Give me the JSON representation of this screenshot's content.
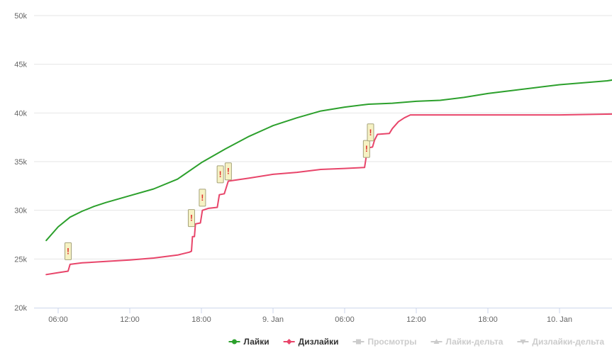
{
  "chart_data": {
    "type": "line",
    "x_axis_type": "datetime",
    "x_range": [
      "2024-01-08T04:30",
      "2024-01-10T12:30"
    ],
    "y_range": [
      20000,
      50000
    ],
    "y_ticks": [
      {
        "value": 20000,
        "label": "20k"
      },
      {
        "value": 25000,
        "label": "25k"
      },
      {
        "value": 30000,
        "label": "30k"
      },
      {
        "value": 35000,
        "label": "35k"
      },
      {
        "value": 40000,
        "label": "40k"
      },
      {
        "value": 45000,
        "label": "45k"
      },
      {
        "value": 50000,
        "label": "50k"
      }
    ],
    "x_ticks": [
      {
        "value": "2024-01-08T06:00",
        "label": "06:00"
      },
      {
        "value": "2024-01-08T12:00",
        "label": "12:00"
      },
      {
        "value": "2024-01-08T18:00",
        "label": "18:00"
      },
      {
        "value": "2024-01-09T00:00",
        "label": "9. Jan"
      },
      {
        "value": "2024-01-09T06:00",
        "label": "06:00"
      },
      {
        "value": "2024-01-09T12:00",
        "label": "12:00"
      },
      {
        "value": "2024-01-09T18:00",
        "label": "18:00"
      },
      {
        "value": "2024-01-10T00:00",
        "label": "10. Jan"
      }
    ],
    "grid": true,
    "legend_position": "bottom-right",
    "series": [
      {
        "name": "Лайки",
        "color": "#2ca02c",
        "visible": true,
        "points": [
          [
            "2024-01-08T05:00",
            26900
          ],
          [
            "2024-01-08T06:00",
            28300
          ],
          [
            "2024-01-08T07:00",
            29300
          ],
          [
            "2024-01-08T08:00",
            29900
          ],
          [
            "2024-01-08T09:00",
            30400
          ],
          [
            "2024-01-08T10:00",
            30800
          ],
          [
            "2024-01-08T12:00",
            31500
          ],
          [
            "2024-01-08T14:00",
            32200
          ],
          [
            "2024-01-08T16:00",
            33200
          ],
          [
            "2024-01-08T18:00",
            34900
          ],
          [
            "2024-01-08T20:00",
            36300
          ],
          [
            "2024-01-08T22:00",
            37600
          ],
          [
            "2024-01-09T00:00",
            38700
          ],
          [
            "2024-01-09T02:00",
            39500
          ],
          [
            "2024-01-09T04:00",
            40200
          ],
          [
            "2024-01-09T06:00",
            40600
          ],
          [
            "2024-01-09T08:00",
            40900
          ],
          [
            "2024-01-09T10:00",
            41000
          ],
          [
            "2024-01-09T12:00",
            41200
          ],
          [
            "2024-01-09T14:00",
            41300
          ],
          [
            "2024-01-09T16:00",
            41600
          ],
          [
            "2024-01-09T18:00",
            42000
          ],
          [
            "2024-01-09T20:00",
            42300
          ],
          [
            "2024-01-09T22:00",
            42600
          ],
          [
            "2024-01-10T00:00",
            42900
          ],
          [
            "2024-01-10T02:00",
            43100
          ],
          [
            "2024-01-10T04:00",
            43300
          ],
          [
            "2024-01-10T05:00",
            43500
          ]
        ]
      },
      {
        "name": "Дизлайки",
        "color": "#e8456a",
        "visible": true,
        "points": [
          [
            "2024-01-08T05:00",
            23400
          ],
          [
            "2024-01-08T06:00",
            23600
          ],
          [
            "2024-01-08T06:50",
            23750
          ],
          [
            "2024-01-08T07:00",
            24450
          ],
          [
            "2024-01-08T08:00",
            24600
          ],
          [
            "2024-01-08T10:00",
            24750
          ],
          [
            "2024-01-08T12:00",
            24900
          ],
          [
            "2024-01-08T14:00",
            25100
          ],
          [
            "2024-01-08T16:00",
            25400
          ],
          [
            "2024-01-08T17:00",
            25700
          ],
          [
            "2024-01-08T17:10",
            25800
          ],
          [
            "2024-01-08T17:15",
            27300
          ],
          [
            "2024-01-08T17:25",
            27300
          ],
          [
            "2024-01-08T17:30",
            28600
          ],
          [
            "2024-01-08T17:55",
            28700
          ],
          [
            "2024-01-08T18:05",
            30000
          ],
          [
            "2024-01-08T18:35",
            30200
          ],
          [
            "2024-01-08T19:20",
            30300
          ],
          [
            "2024-01-08T19:30",
            31600
          ],
          [
            "2024-01-08T19:55",
            31700
          ],
          [
            "2024-01-08T20:15",
            33000
          ],
          [
            "2024-01-08T22:00",
            33300
          ],
          [
            "2024-01-09T00:00",
            33700
          ],
          [
            "2024-01-09T02:00",
            33900
          ],
          [
            "2024-01-09T04:00",
            34200
          ],
          [
            "2024-01-09T06:00",
            34300
          ],
          [
            "2024-01-09T07:40",
            34400
          ],
          [
            "2024-01-09T07:55",
            36400
          ],
          [
            "2024-01-09T08:20",
            36500
          ],
          [
            "2024-01-09T08:30",
            37200
          ],
          [
            "2024-01-09T08:45",
            37800
          ],
          [
            "2024-01-09T09:45",
            37900
          ],
          [
            "2024-01-09T10:00",
            38400
          ],
          [
            "2024-01-09T10:30",
            39100
          ],
          [
            "2024-01-09T11:00",
            39500
          ],
          [
            "2024-01-09T11:30",
            39800
          ],
          [
            "2024-01-09T14:00",
            39800
          ],
          [
            "2024-01-09T18:00",
            39800
          ],
          [
            "2024-01-10T00:00",
            39800
          ],
          [
            "2024-01-10T05:00",
            39900
          ]
        ]
      }
    ],
    "flags": [
      {
        "x": "2024-01-08T06:50",
        "y": 25800,
        "text": "!"
      },
      {
        "x": "2024-01-08T17:10",
        "y": 29200,
        "text": "!"
      },
      {
        "x": "2024-01-08T18:05",
        "y": 31300,
        "text": "!"
      },
      {
        "x": "2024-01-08T19:35",
        "y": 33700,
        "text": "!"
      },
      {
        "x": "2024-01-08T20:15",
        "y": 34000,
        "text": "!"
      },
      {
        "x": "2024-01-09T07:50",
        "y": 36300,
        "text": "!"
      },
      {
        "x": "2024-01-09T08:10",
        "y": 38000,
        "text": "!"
      }
    ],
    "legend": [
      {
        "name": "Лайки",
        "symbol": "circle",
        "color": "#2ca02c",
        "active": true
      },
      {
        "name": "Дизлайки",
        "symbol": "diamond",
        "color": "#e8456a",
        "active": true
      },
      {
        "name": "Просмотры",
        "symbol": "square",
        "color": "#cccccc",
        "active": false
      },
      {
        "name": "Лайки-дельта",
        "symbol": "triangle",
        "color": "#cccccc",
        "active": false
      },
      {
        "name": "Дизлайки-дельта",
        "symbol": "triangle-down",
        "color": "#cccccc",
        "active": false
      }
    ]
  }
}
